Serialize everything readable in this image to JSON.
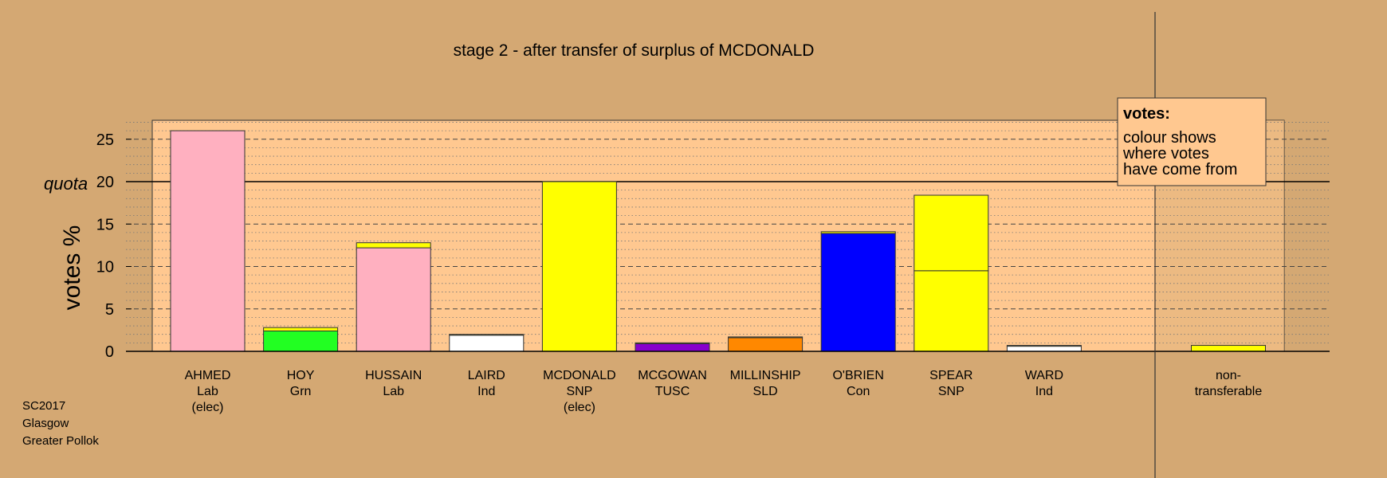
{
  "chart_data": {
    "type": "bar",
    "title": "stage 2 - after transfer of surplus of MCDONALD",
    "ylabel": "votes %",
    "ylim": [
      0,
      27
    ],
    "yticks": [
      0,
      5,
      10,
      15,
      20,
      25
    ],
    "quota": {
      "label": "quota",
      "value": 20
    },
    "candidates": [
      {
        "name": "AHMED",
        "party": "Lab",
        "status": "(elec)",
        "segments": [
          {
            "value": 26.0,
            "color": "#FFB0C0"
          }
        ]
      },
      {
        "name": "HOY",
        "party": "Grn",
        "status": "",
        "segments": [
          {
            "value": 2.4,
            "color": "#22FF22"
          },
          {
            "value": 0.4,
            "color": "#FFFF00"
          }
        ]
      },
      {
        "name": "HUSSAIN",
        "party": "Lab",
        "status": "",
        "segments": [
          {
            "value": 12.2,
            "color": "#FFB0C0"
          },
          {
            "value": 0.6,
            "color": "#FFFF00"
          }
        ]
      },
      {
        "name": "LAIRD",
        "party": "Ind",
        "status": "",
        "segments": [
          {
            "value": 1.9,
            "color": "#FFFFFF"
          },
          {
            "value": 0.1,
            "color": "#FFFF00"
          }
        ]
      },
      {
        "name": "MCDONALD",
        "party": "SNP",
        "status": "(elec)",
        "segments": [
          {
            "value": 20.0,
            "color": "#FFFF00"
          }
        ]
      },
      {
        "name": "MCGOWAN",
        "party": "TUSC",
        "status": "",
        "segments": [
          {
            "value": 0.9,
            "color": "#8800CC"
          },
          {
            "value": 0.1,
            "color": "#FFFF00"
          }
        ]
      },
      {
        "name": "MILLINSHIP",
        "party": "SLD",
        "status": "",
        "segments": [
          {
            "value": 1.6,
            "color": "#FF8800"
          },
          {
            "value": 0.1,
            "color": "#FFFF00"
          }
        ]
      },
      {
        "name": "O'BRIEN",
        "party": "Con",
        "status": "",
        "segments": [
          {
            "value": 13.9,
            "color": "#0000FF"
          },
          {
            "value": 0.2,
            "color": "#FFFF00"
          }
        ]
      },
      {
        "name": "SPEAR",
        "party": "SNP",
        "status": "",
        "segments": [
          {
            "value": 9.5,
            "color": "#FFFF00"
          },
          {
            "value": 8.9,
            "color": "#FFFF00"
          }
        ]
      },
      {
        "name": "WARD",
        "party": "Ind",
        "status": "",
        "segments": [
          {
            "value": 0.6,
            "color": "#FFFFFF"
          },
          {
            "value": 0.1,
            "color": "#FFFF00"
          }
        ]
      }
    ],
    "nontransferable": {
      "label_line1": "non-",
      "label_line2": "transferable",
      "value": 0.7,
      "color": "#FFFF00"
    },
    "legend": {
      "title": "votes:",
      "lines": [
        "colour shows",
        "where votes",
        "have come from"
      ],
      "position": "top-right"
    },
    "grid": true
  },
  "footer": {
    "lines": [
      "SC2017",
      "Glasgow",
      "Greater Pollok"
    ]
  },
  "colors": {
    "background": "#D4A873",
    "panel": "#FFC890"
  }
}
